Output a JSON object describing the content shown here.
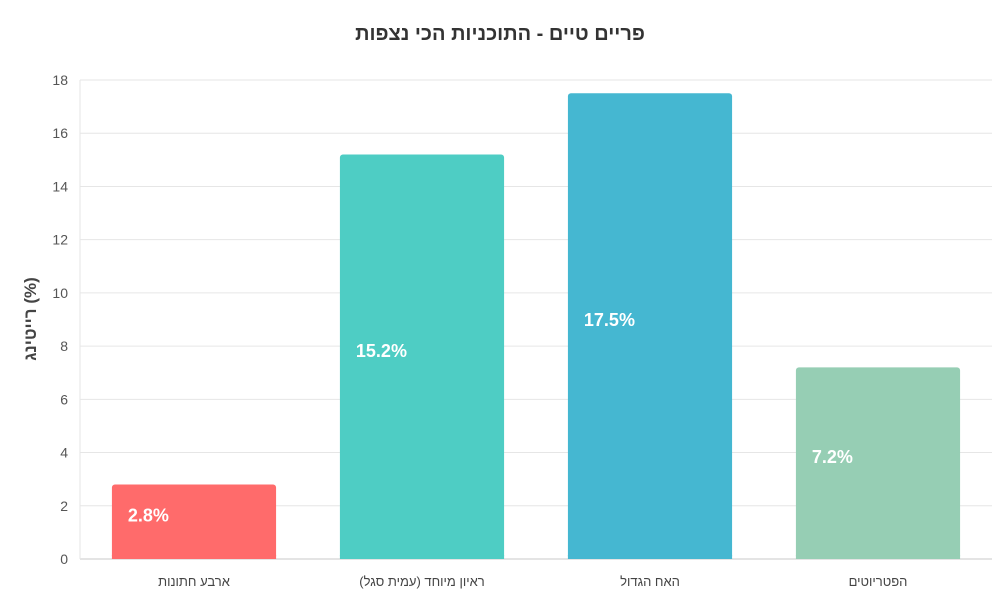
{
  "chart_data": {
    "type": "bar",
    "title": "פריים טיים - התוכניות הכי נצפות",
    "xlabel": "",
    "ylabel": "רייטינג (%)",
    "ylim": [
      0,
      18
    ],
    "yticks": [
      0,
      2,
      4,
      6,
      8,
      10,
      12,
      14,
      16,
      18
    ],
    "grid": true,
    "legend": "none",
    "categories": [
      "ארבע חתונות",
      "ראיון מיוחד (עמית סגל)",
      "האח הגדול",
      "הפטריוטים"
    ],
    "values": [
      2.8,
      15.2,
      17.5,
      7.2
    ],
    "data_labels": [
      "2.8%",
      "15.2%",
      "17.5%",
      "7.2%"
    ],
    "colors": [
      "#ff6b6b",
      "#4ecdc4",
      "#45b7d1",
      "#96ceb4"
    ]
  }
}
